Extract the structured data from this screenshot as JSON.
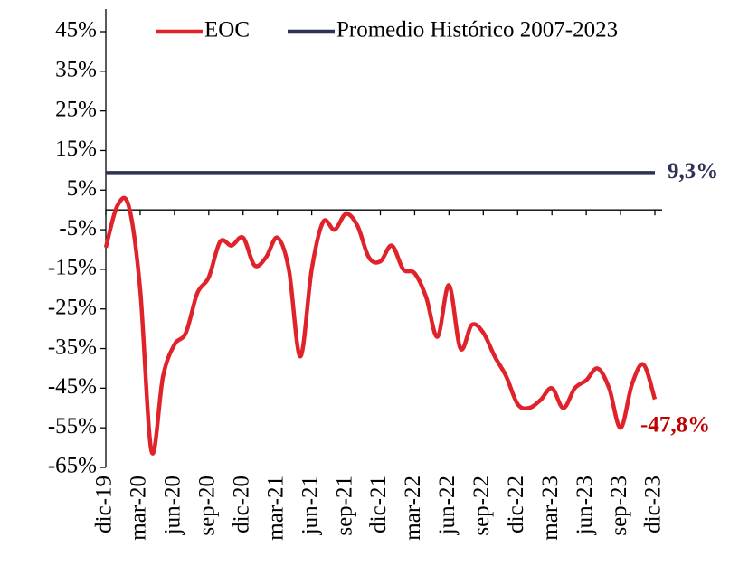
{
  "chart_data": {
    "type": "line",
    "categories": [
      "dic-19",
      null,
      null,
      "mar-20",
      null,
      null,
      "jun-20",
      null,
      null,
      "sep-20",
      null,
      null,
      "dic-20",
      null,
      null,
      "mar-21",
      null,
      null,
      "jun-21",
      null,
      null,
      "sep-21",
      null,
      null,
      "dic-21",
      null,
      null,
      "mar-22",
      null,
      null,
      "jun-22",
      null,
      null,
      "sep-22",
      null,
      null,
      "dic-22",
      null,
      null,
      "mar-23",
      null,
      null,
      "jun-23",
      null,
      null,
      "sep-23",
      null,
      null,
      "dic-23"
    ],
    "series": [
      {
        "name": "EOC",
        "color": "#e0232b",
        "values": [
          -9.5,
          1,
          1,
          -20,
          -61,
          -42,
          -34,
          -31,
          -21,
          -17,
          -8,
          -9,
          -7,
          -14,
          -12,
          -7,
          -15,
          -37,
          -15,
          -3,
          -5,
          -1,
          -4,
          -12,
          -13,
          -9,
          -15,
          -16,
          -22,
          -32,
          -19,
          -35,
          -29,
          -31,
          -37,
          -42,
          -49,
          -50,
          -48,
          -45,
          -50,
          -45,
          -43,
          -40,
          -45,
          -55,
          -44,
          -39,
          -47.8
        ],
        "value_labels": [
          null,
          null,
          null,
          null,
          null,
          null,
          null,
          null,
          null,
          null,
          null,
          null,
          null,
          null,
          null,
          null,
          null,
          null,
          null,
          null,
          null,
          null,
          null,
          null,
          null,
          null,
          null,
          null,
          null,
          null,
          null,
          null,
          null,
          null,
          null,
          null,
          null,
          null,
          null,
          null,
          null,
          null,
          null,
          null,
          null,
          null,
          null,
          null,
          "-47,8%"
        ],
        "label_color": "#c00000"
      },
      {
        "name": "Promedio Histórico 2007-2023",
        "color": "#2e3356",
        "values": [
          9.3,
          9.3,
          9.3,
          9.3,
          9.3,
          9.3,
          9.3,
          9.3,
          9.3,
          9.3,
          9.3,
          9.3,
          9.3,
          9.3,
          9.3,
          9.3,
          9.3,
          9.3,
          9.3,
          9.3,
          9.3,
          9.3,
          9.3,
          9.3,
          9.3,
          9.3,
          9.3,
          9.3,
          9.3,
          9.3,
          9.3,
          9.3,
          9.3,
          9.3,
          9.3,
          9.3,
          9.3,
          9.3,
          9.3,
          9.3,
          9.3,
          9.3,
          9.3,
          9.3,
          9.3,
          9.3,
          9.3,
          9.3,
          9.3
        ],
        "value_labels": [
          null,
          null,
          null,
          null,
          null,
          null,
          null,
          null,
          null,
          null,
          null,
          null,
          null,
          null,
          null,
          null,
          null,
          null,
          null,
          null,
          null,
          null,
          null,
          null,
          null,
          null,
          null,
          null,
          null,
          null,
          null,
          null,
          null,
          null,
          null,
          null,
          null,
          null,
          null,
          null,
          null,
          null,
          null,
          null,
          null,
          null,
          null,
          null,
          "9,3%"
        ],
        "label_color": "#2e3356"
      }
    ],
    "ylim": [
      -65,
      45
    ],
    "yticks": [
      {
        "value": -65,
        "label": "-65%"
      },
      {
        "value": -55,
        "label": "-55%"
      },
      {
        "value": -45,
        "label": "-45%"
      },
      {
        "value": -35,
        "label": "-35%"
      },
      {
        "value": -25,
        "label": "-25%"
      },
      {
        "value": -15,
        "label": "-15%"
      },
      {
        "value": -5,
        "label": "-5%"
      },
      {
        "value": 5,
        "label": "5%"
      },
      {
        "value": 15,
        "label": "15%"
      },
      {
        "value": 25,
        "label": "25%"
      },
      {
        "value": 35,
        "label": "35%"
      },
      {
        "value": 45,
        "label": "45%"
      }
    ],
    "legend": "top",
    "grid": false
  }
}
